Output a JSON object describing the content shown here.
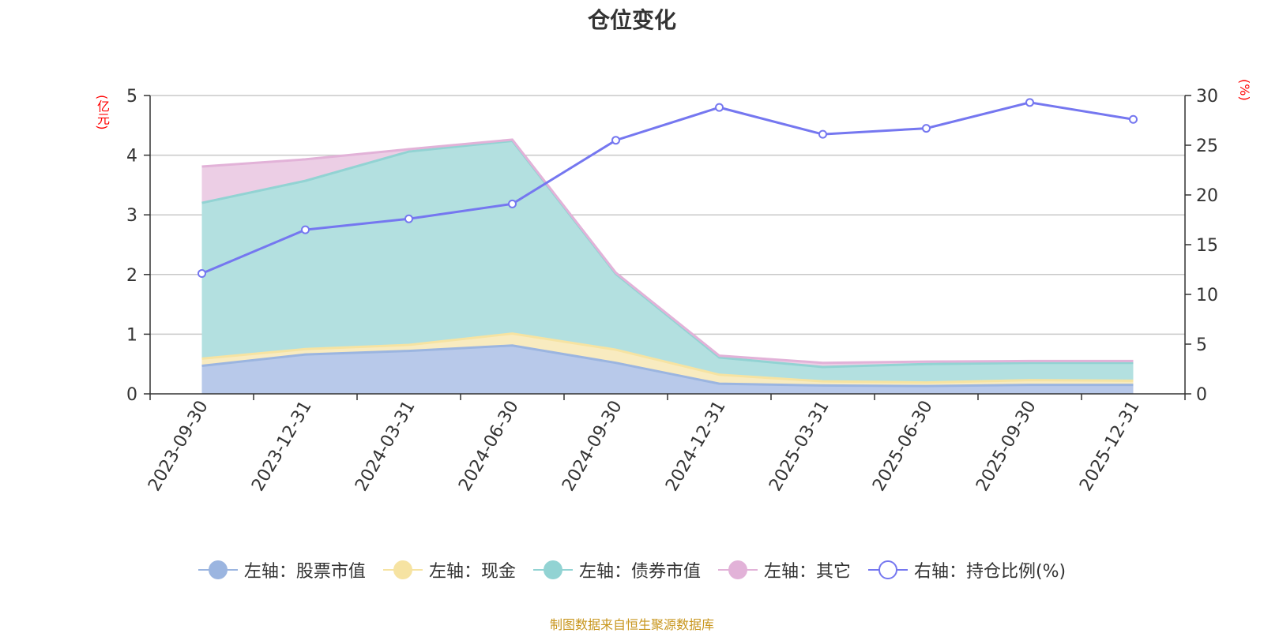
{
  "chart_data": {
    "type": "area",
    "title": "仓位变化",
    "categories": [
      "2023-09-30",
      "2023-12-31",
      "2024-03-31",
      "2024-06-30",
      "2024-09-30",
      "2024-12-31",
      "2025-03-31",
      "2025-06-30",
      "2025-09-30",
      "2025-12-31"
    ],
    "left_axis": {
      "unit": "(亿元)",
      "ylim": [
        0,
        5
      ],
      "ticks": [
        "0",
        "1",
        "2",
        "3",
        "4",
        "5"
      ]
    },
    "right_axis": {
      "unit": "(%)",
      "ylim": [
        0,
        30
      ],
      "ticks": [
        "0",
        "5",
        "10",
        "15",
        "20",
        "25",
        "30"
      ]
    },
    "stacked_series": [
      {
        "name": "左轴：股票市值",
        "color": "#9bb5e0",
        "fill": "#b8c9ea",
        "values": [
          0.47,
          0.66,
          0.72,
          0.81,
          0.52,
          0.17,
          0.14,
          0.13,
          0.15,
          0.15
        ]
      },
      {
        "name": "左轴：现金",
        "color": "#f6e3a2",
        "fill": "#f8ebc0",
        "values": [
          0.12,
          0.09,
          0.1,
          0.2,
          0.22,
          0.15,
          0.07,
          0.06,
          0.08,
          0.07
        ]
      },
      {
        "name": "左轴：债券市值",
        "color": "#92d3d3",
        "fill": "#b3e0e0",
        "values": [
          2.61,
          2.82,
          3.24,
          3.23,
          1.27,
          0.29,
          0.24,
          0.31,
          0.29,
          0.3
        ]
      },
      {
        "name": "左轴：其它",
        "color": "#e2b2d8",
        "fill": "#ecceE5",
        "values": [
          0.61,
          0.36,
          0.04,
          0.02,
          0.02,
          0.03,
          0.07,
          0.04,
          0.03,
          0.03
        ]
      }
    ],
    "line_series": {
      "name": "右轴：持仓比例(%)",
      "color": "#7577f0",
      "values": [
        12.1,
        16.5,
        17.6,
        19.1,
        25.5,
        28.8,
        26.1,
        26.7,
        29.3,
        27.6
      ]
    },
    "legend_position": "bottom",
    "grid": true
  },
  "source": "制图数据来自恒生聚源数据库"
}
